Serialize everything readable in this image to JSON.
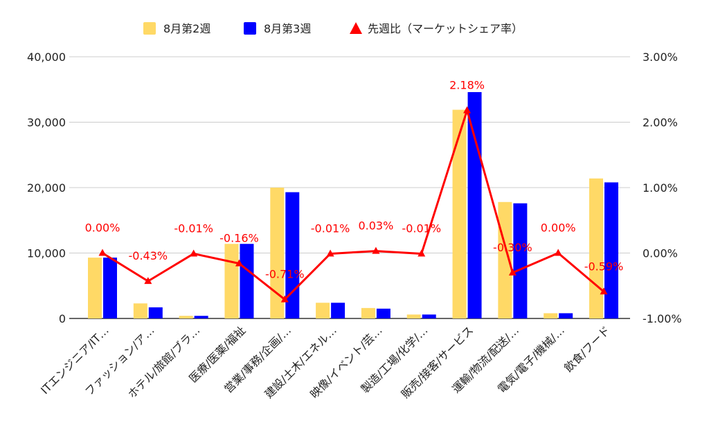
{
  "chart_data": {
    "type": "bar",
    "categories": [
      "ITエンジニア/IT…",
      "ファッション/ア…",
      "ホテル/旅館/ブラ…",
      "医療/医薬/福祉",
      "営業/事務/企画/…",
      "建設/土木/エネル…",
      "映像/イベント/芸…",
      "製造/工場/化学/…",
      "販売/接客/サービス",
      "運輸/物流/配送/…",
      "電気/電子/機械/…",
      "飲食/フード"
    ],
    "series": [
      {
        "name": "8月第2週",
        "type": "bar",
        "axis": "left",
        "color": "#ffd966",
        "values": [
          9300,
          2300,
          400,
          11400,
          20000,
          2400,
          1600,
          600,
          31900,
          17800,
          800,
          21400
        ]
      },
      {
        "name": "8月第3週",
        "type": "bar",
        "axis": "left",
        "color": "#0000ff",
        "values": [
          9300,
          1700,
          400,
          11400,
          19300,
          2400,
          1500,
          600,
          34600,
          17600,
          800,
          20800
        ]
      },
      {
        "name": "先週比（マーケットシェア率）",
        "type": "line",
        "axis": "right",
        "color": "#ff0000",
        "values": [
          0.0,
          -0.43,
          -0.01,
          -0.16,
          -0.71,
          -0.01,
          0.03,
          -0.01,
          2.18,
          -0.3,
          0.0,
          -0.59
        ],
        "labels": [
          "0.00%",
          "-0.43%",
          "-0.01%",
          "-0.16%",
          "-0.71%",
          "-0.01%",
          "0.03%",
          "-0.01%",
          "2.18%",
          "-0.30%",
          "0.00%",
          "-0.59%"
        ]
      }
    ],
    "left_axis": {
      "ylim": [
        0,
        40000
      ],
      "ticks": [
        "0",
        "10,000",
        "20,000",
        "30,000",
        "40,000"
      ]
    },
    "right_axis": {
      "ylim": [
        -1,
        3
      ],
      "ticks": [
        "-1.00%",
        "0.00%",
        "1.00%",
        "2.00%",
        "3.00%"
      ]
    },
    "legend_position": "top",
    "grid": true
  }
}
